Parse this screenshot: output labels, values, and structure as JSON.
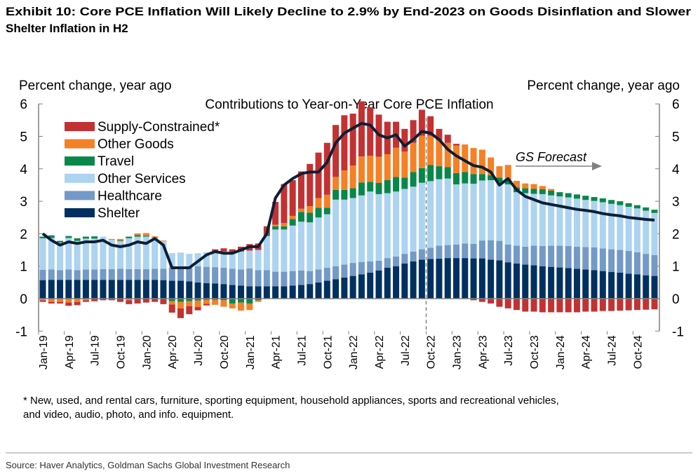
{
  "title_line1": "Exhibit 10: Core PCE Inflation Will Likely Decline to 2.9% by End-2023 on Goods Disinflation and Slower",
  "title_line2": "Shelter Inflation in H2",
  "footnote_line1": "* New, used, and rental cars, furniture, sporting equipment, household appliances, sports and recreational vehicles,",
  "footnote_line2": "and video, audio, photo, and info. equipment.",
  "source": "Source: Haver Analytics, Goldman Sachs Global Investment Research",
  "chart_data": {
    "type": "bar",
    "stacked": true,
    "title": "Contributions to Year-on-Year Core PCE Inflation",
    "ylabel_left": "Percent change, year ago",
    "ylabel_right": "Percent change, year ago",
    "ylim": [
      -1,
      6
    ],
    "yticks": [
      -1,
      0,
      1,
      2,
      3,
      4,
      5,
      6
    ],
    "xtick_labels": [
      "Jan-19",
      "Apr-19",
      "Jul-19",
      "Oct-19",
      "Jan-20",
      "Apr-20",
      "Jul-20",
      "Oct-20",
      "Jan-21",
      "Apr-21",
      "Jul-21",
      "Oct-21",
      "Jan-22",
      "Apr-22",
      "Jul-22",
      "Oct-22",
      "Jan-23",
      "Apr-23",
      "Jul-23",
      "Oct-23",
      "Jan-24",
      "Apr-24",
      "Jul-24",
      "Oct-24"
    ],
    "x_start": "Jan-2019",
    "x_end": "Dec-2024",
    "frequency": "monthly",
    "forecast_label": "GS Forecast",
    "forecast_start": "Oct-22",
    "legend_placement": "top-left",
    "series": [
      {
        "name": "Shelter",
        "color": "#003060",
        "values": [
          0.57,
          0.58,
          0.58,
          0.58,
          0.58,
          0.58,
          0.58,
          0.58,
          0.58,
          0.58,
          0.58,
          0.58,
          0.58,
          0.58,
          0.57,
          0.55,
          0.55,
          0.53,
          0.5,
          0.48,
          0.47,
          0.45,
          0.42,
          0.4,
          0.38,
          0.38,
          0.38,
          0.38,
          0.38,
          0.4,
          0.42,
          0.45,
          0.5,
          0.55,
          0.6,
          0.65,
          0.7,
          0.75,
          0.8,
          0.87,
          0.95,
          1.0,
          1.08,
          1.15,
          1.2,
          1.22,
          1.23,
          1.25,
          1.25,
          1.25,
          1.24,
          1.24,
          1.2,
          1.18,
          1.12,
          1.08,
          1.05,
          1.03,
          1.0,
          0.98,
          0.96,
          0.94,
          0.92,
          0.9,
          0.88,
          0.85,
          0.82,
          0.8,
          0.77,
          0.75,
          0.72,
          0.7
        ]
      },
      {
        "name": "Healthcare",
        "color": "#7399c6",
        "values": [
          0.32,
          0.32,
          0.3,
          0.32,
          0.3,
          0.32,
          0.32,
          0.33,
          0.33,
          0.34,
          0.33,
          0.33,
          0.33,
          0.34,
          0.35,
          0.4,
          0.42,
          0.45,
          0.5,
          0.5,
          0.5,
          0.5,
          0.5,
          0.5,
          0.55,
          0.5,
          0.5,
          0.45,
          0.45,
          0.45,
          0.45,
          0.4,
          0.4,
          0.4,
          0.4,
          0.4,
          0.4,
          0.38,
          0.35,
          0.3,
          0.3,
          0.3,
          0.3,
          0.3,
          0.32,
          0.35,
          0.4,
          0.4,
          0.42,
          0.45,
          0.45,
          0.55,
          0.6,
          0.6,
          0.55,
          0.55,
          0.55,
          0.6,
          0.62,
          0.65,
          0.67,
          0.68,
          0.68,
          0.69,
          0.7,
          0.7,
          0.7,
          0.7,
          0.7,
          0.68,
          0.66,
          0.64
        ]
      },
      {
        "name": "Other Services",
        "color": "#acd3f0",
        "values": [
          0.97,
          0.97,
          0.85,
          0.97,
          0.9,
          0.95,
          0.95,
          1.0,
          0.9,
          0.85,
          0.95,
          1.0,
          1.0,
          0.95,
          0.85,
          0.45,
          0.45,
          0.4,
          0.4,
          0.45,
          0.5,
          0.5,
          0.5,
          0.55,
          0.55,
          0.62,
          1.05,
          1.3,
          1.3,
          1.4,
          1.5,
          1.5,
          1.6,
          1.65,
          2.05,
          2.0,
          2.0,
          2.05,
          2.15,
          2.05,
          2.0,
          2.0,
          2.0,
          2.0,
          2.05,
          2.05,
          2.05,
          2.05,
          1.85,
          1.85,
          1.85,
          1.85,
          1.85,
          1.8,
          1.85,
          1.65,
          1.65,
          1.6,
          1.6,
          1.55,
          1.52,
          1.5,
          1.48,
          1.45,
          1.43,
          1.42,
          1.4,
          1.38,
          1.36,
          1.35,
          1.33,
          1.3
        ]
      },
      {
        "name": "Travel",
        "color": "#08874a",
        "values": [
          0.05,
          0.08,
          0.05,
          0.06,
          0.08,
          0.06,
          0.07,
          0,
          0,
          0.02,
          0.05,
          0.05,
          0.03,
          0,
          -0.02,
          -0.08,
          -0.1,
          -0.08,
          -0.06,
          -0.04,
          -0.04,
          -0.05,
          -0.15,
          -0.12,
          -0.15,
          -0.05,
          0.05,
          0.1,
          0.1,
          0.2,
          0.3,
          0.3,
          0.3,
          0.2,
          0.3,
          0.3,
          0.3,
          0.4,
          0.3,
          0.35,
          0.4,
          0.45,
          0.35,
          0.45,
          0.45,
          0.5,
          0.4,
          0.35,
          0.35,
          0.35,
          0.3,
          0.2,
          0.15,
          0.15,
          0.15,
          0.15,
          0.15,
          0.15,
          0.15,
          0.15,
          0.13,
          0.13,
          0.13,
          0.13,
          0.12,
          0.12,
          0.12,
          0.12,
          0.11,
          0.1,
          0.1,
          0.1
        ]
      },
      {
        "name": "Other Goods",
        "color": "#f58025",
        "values": [
          -0.05,
          -0.1,
          -0.1,
          -0.12,
          -0.1,
          -0.05,
          0,
          0,
          0.03,
          0.05,
          -0.05,
          0.05,
          0.08,
          0.05,
          0.02,
          -0.1,
          -0.2,
          -0.15,
          -0.2,
          -0.12,
          -0.15,
          -0.2,
          -0.15,
          -0.25,
          -0.2,
          -0.05,
          0,
          0.05,
          0.1,
          0.1,
          0.1,
          0.2,
          0.3,
          0.4,
          0.4,
          0.6,
          0.7,
          0.8,
          0.8,
          0.8,
          0.8,
          0.9,
          0.8,
          0.9,
          1.0,
          0.9,
          0.8,
          0.75,
          0.85,
          0.85,
          0.8,
          0.75,
          0.55,
          0.35,
          0.45,
          0.2,
          0.15,
          0.15,
          0.1,
          0.05,
          0,
          0,
          0,
          0,
          0,
          0,
          0,
          0,
          0,
          0,
          0,
          0
        ]
      },
      {
        "name": "Supply-Constrained*",
        "color": "#c23232",
        "values": [
          -0.05,
          -0.05,
          -0.05,
          -0.1,
          -0.1,
          -0.05,
          -0.08,
          -0.05,
          -0.05,
          -0.1,
          -0.12,
          -0.15,
          -0.12,
          -0.1,
          -0.15,
          -0.25,
          -0.3,
          -0.25,
          -0.1,
          -0.05,
          0.05,
          0.1,
          0.1,
          0.15,
          0.2,
          0.2,
          0.25,
          0.7,
          1.2,
          1.1,
          1.15,
          1.3,
          1.4,
          1.6,
          1.6,
          1.7,
          1.6,
          1.7,
          1.5,
          1.3,
          1.0,
          0.8,
          0.7,
          0.7,
          0.8,
          0.6,
          0.35,
          0.25,
          0.05,
          0,
          -0.05,
          -0.1,
          -0.15,
          -0.25,
          -0.3,
          -0.35,
          -0.4,
          -0.4,
          -0.42,
          -0.42,
          -0.42,
          -0.42,
          -0.42,
          -0.4,
          -0.4,
          -0.38,
          -0.38,
          -0.37,
          -0.36,
          -0.35,
          -0.34,
          -0.33
        ]
      }
    ],
    "line": {
      "name": "Core PCE",
      "color": "#0c1f36",
      "values": [
        2.0,
        1.8,
        1.65,
        1.75,
        1.7,
        1.75,
        1.75,
        1.8,
        1.65,
        1.6,
        1.65,
        1.75,
        1.7,
        1.85,
        1.65,
        0.95,
        0.95,
        0.95,
        1.15,
        1.35,
        1.45,
        1.4,
        1.4,
        1.5,
        1.6,
        1.6,
        2.0,
        3.1,
        3.5,
        3.7,
        3.85,
        3.9,
        3.9,
        4.2,
        4.8,
        5.1,
        5.25,
        5.4,
        5.35,
        5.05,
        4.95,
        5.05,
        4.7,
        4.9,
        5.15,
        5.1,
        4.9,
        4.6,
        4.4,
        4.25,
        4.1,
        4.05,
        3.9,
        3.5,
        3.7,
        3.35,
        3.15,
        3.05,
        2.95,
        2.9,
        2.85,
        2.8,
        2.75,
        2.72,
        2.68,
        2.62,
        2.58,
        2.55,
        2.5,
        2.47,
        2.44,
        2.42
      ]
    }
  }
}
